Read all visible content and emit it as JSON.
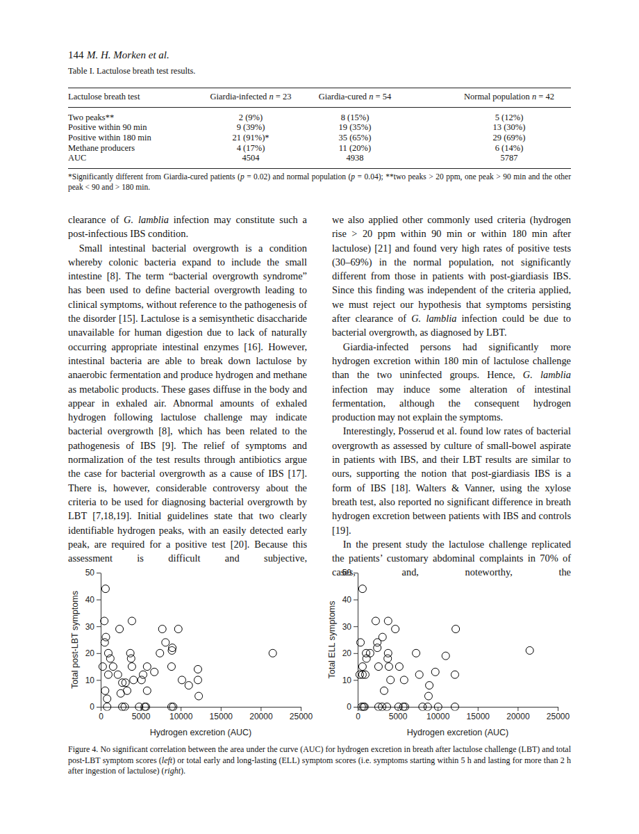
{
  "header": {
    "page": "144",
    "authors": "M. H. Morken et al."
  },
  "table": {
    "caption": "Table I. Lactulose breath test results.",
    "columns": [
      "Lactulose breath test",
      [
        "Giardia-infected ",
        {
          "italic": "n"
        },
        " = 23"
      ],
      [
        "Giardia-cured ",
        {
          "italic": "n"
        },
        " = 54"
      ],
      [
        "Normal population ",
        {
          "italic": "n"
        },
        " = 42"
      ]
    ],
    "rows": [
      [
        "Two peaks**",
        "2 (9%)",
        "8 (15%)",
        "5 (12%)"
      ],
      [
        "Positive within 90 min",
        "9 (39%)",
        "19 (35%)",
        "13 (30%)"
      ],
      [
        "Positive within 180 min",
        "21 (91%)*",
        "35 (65%)",
        "29 (69%)"
      ],
      [
        "Methane producers",
        "4 (17%)",
        "11 (20%)",
        "6 (14%)"
      ],
      [
        "AUC",
        "4504",
        "4938",
        "5787"
      ]
    ],
    "footnote": [
      "*Significantly different from Giardia-cured patients (",
      {
        "italic": "p"
      },
      " = 0.02) and normal population (",
      {
        "italic": "p"
      },
      " = 0.04); **two peaks > 20 ppm, one peak > 90 min and the other peak < 90 and > 180 min."
    ]
  },
  "text": {
    "left": [
      [
        "clearance of ",
        {
          "italic": "G. lamblia"
        },
        " infection may constitute such a post-infectious IBS condition."
      ],
      [
        "Small intestinal bacterial overgrowth is a condition whereby colonic bacteria expand to include the small intestine [8]. The term “bacterial overgrowth syndrome” has been used to define bacterial overgrowth leading to clinical symptoms, without reference to the pathogenesis of the disorder [15]. Lactulose is a semisynthetic disaccharide unavailable for human digestion due to lack of naturally occurring appropriate intestinal enzymes [16]. However, intestinal bacteria are able to break down lactulose by anaerobic fermentation and produce hydrogen and methane as metabolic products. These gases diffuse in the body and appear in exhaled air. Abnormal amounts of exhaled hydrogen following lactulose challenge may indicate bacterial overgrowth [8], which has been related to the pathogenesis of IBS [9]. The relief of symptoms and normalization of the test results through antibiotics argue the case for bacterial overgrowth as a cause of IBS [17]. There is, however, considerable controversy about the criteria to be used for diagnosing bacterial overgrowth by LBT [7,18,19]. Initial guidelines state that two clearly identifiable hydrogen peaks, with an easily detected early peak, are required for a positive test [20]. Because this assessment is difficult and subjective,"
      ]
    ],
    "right": [
      [
        "we also applied other commonly used criteria (hydrogen rise > 20 ppm within 90 min or within 180 min after lactulose) [21] and found very high rates of positive tests (30–69%) in the normal population, not significantly different from those in patients with post-giardiasis IBS. Since this finding was independent of the criteria applied, we must reject our hypothesis that symptoms persisting after clearance of ",
        {
          "italic": "G. lamblia"
        },
        " infection could be due to bacterial overgrowth, as diagnosed by LBT."
      ],
      [
        "Giardia-infected persons had significantly more hydrogen excretion within 180 min of lactulose challenge than the two uninfected groups. Hence, ",
        {
          "italic": "G. lamblia"
        },
        " infection may induce some alteration of intestinal fermentation, although the consequent hydrogen production may not explain the symptoms."
      ],
      [
        "Interestingly, Posserud et al. found low rates of bacterial overgrowth as assessed by culture of small-bowel aspirate in patients with IBS, and their LBT results are similar to ours, supporting the notion that post-giardiasis IBS is a form of IBS [18]. Walters & Vanner, using the xylose breath test, also reported no significant difference in breath hydrogen excretion between patients with IBS and controls [19]."
      ],
      [
        "In the present study the lactulose challenge replicated the patients’ customary abdominal complaints in 70% of cases, and, noteworthy, the"
      ]
    ]
  },
  "chart_data": [
    {
      "type": "scatter",
      "x_label": "Hydrogen excretion (AUC)",
      "y_label": "Total post-LBT symptoms",
      "x": [
        600,
        450,
        650,
        500,
        250,
        550,
        800,
        800,
        950,
        1200,
        950,
        1550,
        2350,
        2150,
        2700,
        2500,
        2700,
        3100,
        3300,
        3000,
        3700,
        3800,
        3900,
        3900,
        4100,
        4800,
        5100,
        5300,
        5500,
        5650,
        5800,
        5800,
        6700,
        7400,
        7700,
        8100,
        8900,
        8950,
        8850,
        8850,
        9050,
        9700,
        10150,
        11000,
        12150,
        12150,
        12250,
        21500
      ],
      "values": [
        44,
        32,
        26,
        24,
        15,
        6,
        3,
        0,
        20,
        18,
        12,
        15,
        29,
        12,
        9,
        5,
        0,
        9,
        6,
        0,
        20,
        18,
        32,
        15,
        10,
        0,
        10,
        12,
        0,
        0,
        15,
        6,
        13,
        20,
        29,
        24,
        21,
        22,
        15,
        0,
        0,
        29,
        10,
        8,
        14,
        10,
        4,
        20
      ],
      "xlim": [
        0,
        25000
      ],
      "ylim": [
        0,
        50
      ],
      "xticks": [
        0,
        5000,
        10000,
        15000,
        20000,
        25000
      ],
      "yticks": [
        0,
        10,
        20,
        30,
        40,
        50
      ],
      "marker": "open-circle",
      "color": "#000000",
      "grid": false
    },
    {
      "type": "scatter",
      "x_label": "Hydrogen excretion (AUC)",
      "y_label": "Total ELL symptoms",
      "x": [
        250,
        350,
        500,
        700,
        850,
        600,
        600,
        600,
        1050,
        1100,
        950,
        1550,
        2250,
        2450,
        2450,
        2600,
        2600,
        3100,
        3300,
        3050,
        3800,
        3800,
        3750,
        3900,
        4100,
        3650,
        4700,
        5200,
        5100,
        5700,
        5800,
        5900,
        7300,
        7700,
        8100,
        8950,
        8850,
        8750,
        9700,
        10050,
        11000,
        12150,
        12150,
        12250,
        21500
      ],
      "values": [
        12,
        24,
        0,
        0,
        0,
        44,
        15,
        12,
        20,
        18,
        12,
        20,
        32,
        24,
        22,
        15,
        0,
        26,
        6,
        0,
        32,
        20,
        18,
        15,
        10,
        0,
        29,
        15,
        0,
        0,
        10,
        0,
        20,
        12,
        0,
        8,
        4,
        0,
        13,
        0,
        19,
        0,
        12,
        29,
        21
      ],
      "xlim": [
        0,
        25000
      ],
      "ylim": [
        0,
        50
      ],
      "xticks": [
        0,
        5000,
        10000,
        15000,
        20000,
        25000
      ],
      "yticks": [
        0,
        10,
        20,
        30,
        40,
        50
      ],
      "marker": "open-circle",
      "color": "#000000",
      "grid": false
    }
  ],
  "figure_caption": [
    "Figure 4. No significant correlation between the area under the curve (AUC) for hydrogen excretion in breath after lactulose challenge (LBT) and total post-LBT symptom scores (",
    {
      "italic": "left"
    },
    ") or total early and long-lasting (ELL) symptom scores (i.e. symptoms starting within 5 h and lasting for more than 2 h after ingestion of lactulose) (",
    {
      "italic": "right"
    },
    ")."
  ]
}
